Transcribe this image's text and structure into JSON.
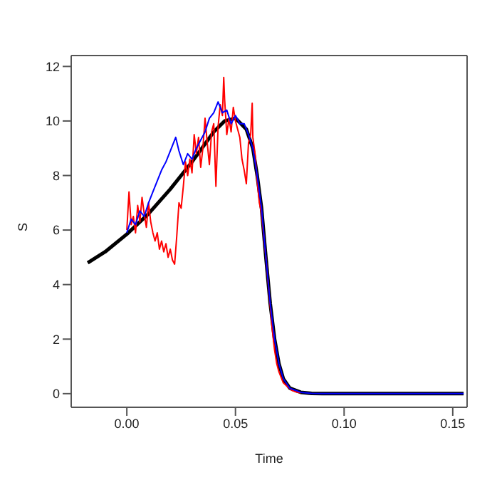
{
  "chart_data": {
    "type": "line",
    "xlabel": "Time",
    "ylabel": "S",
    "xlim": [
      -0.0256,
      0.1566
    ],
    "ylim": [
      -0.5,
      12.4
    ],
    "xticks": [
      {
        "value": 0,
        "label": "0.00"
      },
      0.05,
      {
        "value": 0.1,
        "label": "0.10"
      },
      0.15
    ],
    "yticks": [
      0,
      2,
      4,
      6,
      8,
      10,
      12
    ],
    "grid": false,
    "legend": false,
    "marker": "none",
    "line_style": "solid",
    "series": [
      {
        "color": "#000000",
        "x": [
          -0.018,
          -0.01,
          0,
          0.01,
          0.02,
          0.03,
          0.04,
          0.045,
          0.05,
          0.055,
          0.058,
          0.06,
          0.062,
          0.064,
          0.066,
          0.068,
          0.07,
          0.072,
          0.075,
          0.08,
          0.085,
          0.09,
          0.155
        ],
        "values": [
          4.8,
          5.2,
          5.85,
          6.6,
          7.5,
          8.5,
          9.6,
          10.0,
          10.1,
          9.7,
          9.0,
          8.0,
          6.8,
          5.0,
          3.3,
          2.0,
          1.1,
          0.55,
          0.2,
          0.05,
          0.01,
          0,
          0
        ]
      },
      {
        "color": "#ff0000",
        "x": [
          0,
          0.001,
          0.002,
          0.003,
          0.004,
          0.005,
          0.006,
          0.007,
          0.008,
          0.009,
          0.01,
          0.011,
          0.012,
          0.013,
          0.014,
          0.015,
          0.016,
          0.017,
          0.018,
          0.019,
          0.02,
          0.021,
          0.022,
          0.023,
          0.024,
          0.025,
          0.026,
          0.027,
          0.028,
          0.029,
          0.03,
          0.031,
          0.032,
          0.033,
          0.034,
          0.035,
          0.036,
          0.037,
          0.038,
          0.039,
          0.04,
          0.041,
          0.042,
          0.043,
          0.044,
          0.0446,
          0.045,
          0.046,
          0.047,
          0.048,
          0.049,
          0.05,
          0.051,
          0.052,
          0.053,
          0.054,
          0.055,
          0.056,
          0.057,
          0.0577,
          0.058,
          0.059,
          0.06,
          0.061,
          0.062,
          0.063,
          0.064,
          0.065,
          0.066,
          0.067,
          0.068,
          0.069,
          0.07,
          0.071,
          0.072,
          0.074,
          0.076,
          0.078,
          0.08
        ],
        "values": [
          6.0,
          7.4,
          6.2,
          6.5,
          5.9,
          6.9,
          6.3,
          7.2,
          6.6,
          6.1,
          7.0,
          6.3,
          5.9,
          5.6,
          5.9,
          5.3,
          5.6,
          5.2,
          5.5,
          5.0,
          5.3,
          4.9,
          4.75,
          5.8,
          7.0,
          6.8,
          7.6,
          8.5,
          8.0,
          8.6,
          8.1,
          9.5,
          8.8,
          9.4,
          8.3,
          9.0,
          10.1,
          9.2,
          8.4,
          9.6,
          9.9,
          7.6,
          9.8,
          10.6,
          10.2,
          11.6,
          10.8,
          9.5,
          10.1,
          9.6,
          10.5,
          10.0,
          9.7,
          9.4,
          8.6,
          8.2,
          7.7,
          9.2,
          9.5,
          10.65,
          9.4,
          8.8,
          7.8,
          7.0,
          6.6,
          5.8,
          5.0,
          4.1,
          3.2,
          2.3,
          1.6,
          1.1,
          0.8,
          0.6,
          0.4,
          0.25,
          0.12,
          0.06,
          0.03
        ]
      },
      {
        "color": "#0000ff",
        "x": [
          0,
          0.002,
          0.004,
          0.006,
          0.008,
          0.01,
          0.012,
          0.014,
          0.016,
          0.018,
          0.02,
          0.0225,
          0.024,
          0.026,
          0.028,
          0.03,
          0.032,
          0.034,
          0.036,
          0.038,
          0.04,
          0.042,
          0.044,
          0.046,
          0.048,
          0.05,
          0.052,
          0.054,
          0.056,
          0.058,
          0.06,
          0.062,
          0.064,
          0.066,
          0.068,
          0.07,
          0.072,
          0.075,
          0.08,
          0.085,
          0.09,
          0.1,
          0.12,
          0.155
        ],
        "values": [
          5.9,
          6.4,
          6.2,
          6.7,
          6.5,
          7.0,
          7.4,
          7.8,
          8.2,
          8.5,
          8.9,
          9.4,
          8.9,
          8.4,
          8.8,
          8.6,
          9.0,
          9.3,
          9.6,
          10.1,
          10.3,
          10.7,
          10.3,
          10.4,
          9.9,
          10.2,
          9.9,
          9.9,
          9.5,
          9.0,
          8.0,
          6.8,
          5.0,
          3.3,
          2.0,
          1.1,
          0.55,
          0.2,
          0.05,
          0.01,
          0,
          0,
          0,
          0
        ]
      }
    ]
  }
}
